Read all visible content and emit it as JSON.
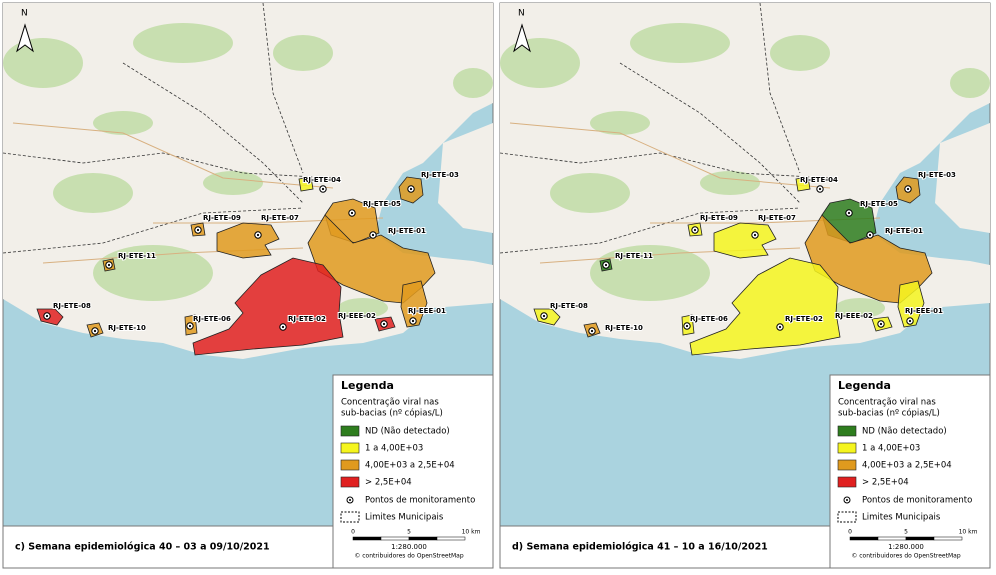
{
  "panels": [
    {
      "caption": "c) Semana epidemiológica 40 – 03 a 09/10/2021",
      "stations": [
        {
          "name": "RJ-ETE-04",
          "class": 1
        },
        {
          "name": "RJ-ETE-03",
          "class": 2
        },
        {
          "name": "RJ-ETE-05",
          "class": 2
        },
        {
          "name": "RJ-ETE-09",
          "class": 2
        },
        {
          "name": "RJ-ETE-07",
          "class": 2
        },
        {
          "name": "RJ-ETE-01",
          "class": 2
        },
        {
          "name": "RJ-ETE-11",
          "class": 2
        },
        {
          "name": "RJ-ETE-08",
          "class": 3
        },
        {
          "name": "RJ-ETE-10",
          "class": 2
        },
        {
          "name": "RJ-ETE-06",
          "class": 2
        },
        {
          "name": "RJ-ETE-02",
          "class": 3
        },
        {
          "name": "RJ-EEE-02",
          "class": 3
        },
        {
          "name": "RJ-EEE-01",
          "class": 2
        }
      ],
      "legend": {
        "title": "Legenda",
        "subtitle": [
          "Concentração viral nas",
          "sub-bacias (nº cópias/L)"
        ],
        "items": [
          {
            "label": "ND (Não detectado)",
            "color": "#2e7d1e"
          },
          {
            "label": "1 a 4,00E+03",
            "color": "#f5f51e"
          },
          {
            "label": "4,00E+03 a 2,5E+04",
            "color": "#e09a1e"
          },
          {
            "label": "> 2,5E+04",
            "color": "#e02020"
          }
        ],
        "points": "Pontos de monitoramento",
        "limits": "Limites Municipais"
      },
      "scale": {
        "ticks": [
          "0",
          "5",
          "10 km"
        ],
        "ratio": "1:280.000",
        "attribution": "© contribuidores do OpenStreetMap"
      },
      "north": "N"
    },
    {
      "caption": "d) Semana epidemiológica 41 – 10 a 16/10/2021",
      "stations": [
        {
          "name": "RJ-ETE-04",
          "class": 1
        },
        {
          "name": "RJ-ETE-03",
          "class": 2
        },
        {
          "name": "RJ-ETE-05",
          "class": 0
        },
        {
          "name": "RJ-ETE-09",
          "class": 1
        },
        {
          "name": "RJ-ETE-07",
          "class": 1
        },
        {
          "name": "RJ-ETE-01",
          "class": 2
        },
        {
          "name": "RJ-ETE-11",
          "class": 0
        },
        {
          "name": "RJ-ETE-08",
          "class": 1
        },
        {
          "name": "RJ-ETE-10",
          "class": 2
        },
        {
          "name": "RJ-ETE-06",
          "class": 1
        },
        {
          "name": "RJ-ETE-02",
          "class": 1
        },
        {
          "name": "RJ-EEE-02",
          "class": 1
        },
        {
          "name": "RJ-EEE-01",
          "class": 1
        }
      ],
      "legend": {
        "title": "Legenda",
        "subtitle": [
          "Concentração viral nas",
          "sub-bacias (nº cópias/L)"
        ],
        "items": [
          {
            "label": "ND (Não detectado)",
            "color": "#2e7d1e"
          },
          {
            "label": "1 a 4,00E+03",
            "color": "#f5f51e"
          },
          {
            "label": "4,00E+03 a 2,5E+04",
            "color": "#e09a1e"
          },
          {
            "label": "> 2,5E+04",
            "color": "#e02020"
          }
        ],
        "points": "Pontos de monitoramento",
        "limits": "Limites Municipais"
      },
      "scale": {
        "ticks": [
          "0",
          "5",
          "10 km"
        ],
        "ratio": "1:280.000",
        "attribution": "© contribuidores do OpenStreetMap"
      },
      "north": "N"
    }
  ]
}
